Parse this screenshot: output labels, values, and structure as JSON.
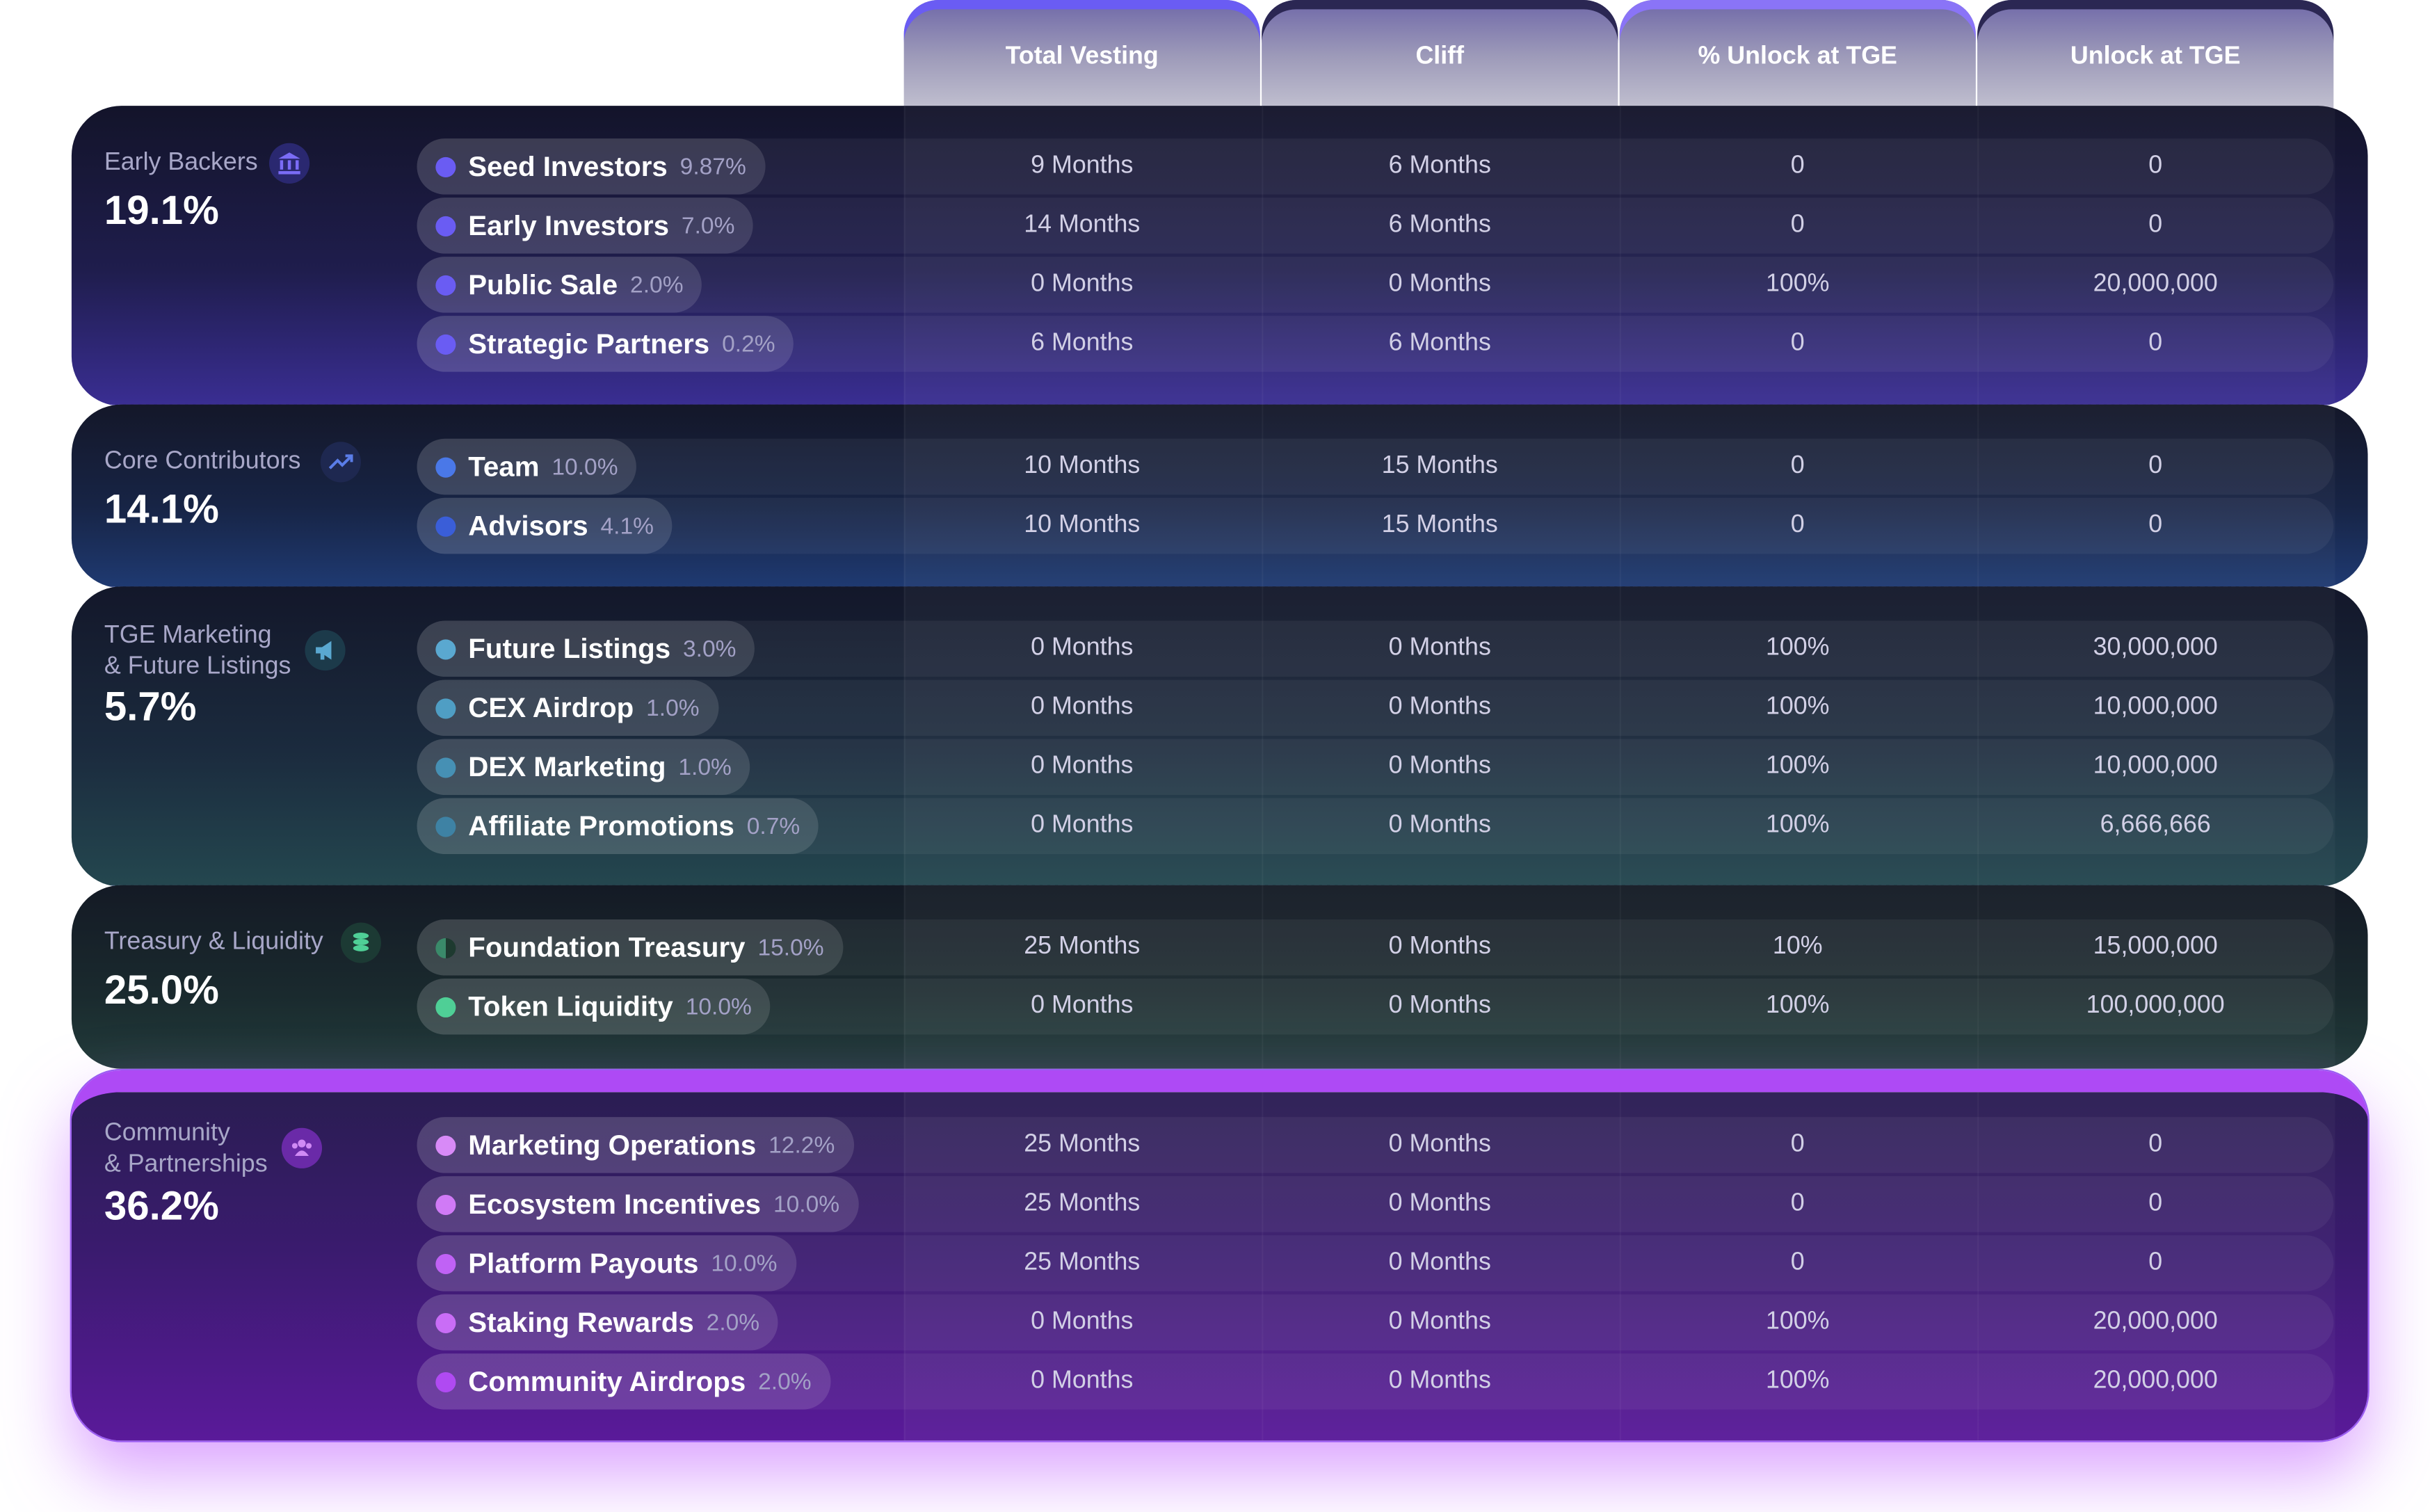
{
  "headers": [
    "Total Vesting",
    "Cliff",
    "% Unlock at TGE",
    "Unlock at TGE"
  ],
  "groups": [
    {
      "name_lines": [
        "Early Backers"
      ],
      "percent": "19.1%",
      "icon": "bank-icon",
      "color": "#6a5cf3",
      "items": [
        {
          "name": "Seed Investors",
          "pct": "9.87%",
          "vesting": "9 Months",
          "cliff": "6 Months",
          "unlock_pct": "0",
          "unlock": "0"
        },
        {
          "name": "Early Investors",
          "pct": "7.0%",
          "vesting": "14 Months",
          "cliff": "6 Months",
          "unlock_pct": "0",
          "unlock": "0"
        },
        {
          "name": "Public Sale",
          "pct": "2.0%",
          "vesting": "0 Months",
          "cliff": "0 Months",
          "unlock_pct": "100%",
          "unlock": "20,000,000"
        },
        {
          "name": "Strategic Partners",
          "pct": "0.2%",
          "vesting": "6 Months",
          "cliff": "6 Months",
          "unlock_pct": "0",
          "unlock": "0"
        }
      ]
    },
    {
      "name_lines": [
        "Core Contributors"
      ],
      "percent": "14.1%",
      "icon": "trending-up-icon",
      "color": "#4a78e8",
      "items": [
        {
          "name": "Team",
          "pct": "10.0%",
          "vesting": "10 Months",
          "cliff": "15 Months",
          "unlock_pct": "0",
          "unlock": "0"
        },
        {
          "name": "Advisors",
          "pct": "4.1%",
          "vesting": "10 Months",
          "cliff": "15 Months",
          "unlock_pct": "0",
          "unlock": "0"
        }
      ]
    },
    {
      "name_lines": [
        "TGE Marketing",
        "& Future Listings"
      ],
      "percent": "5.7%",
      "icon": "megaphone-icon",
      "color": "#5aa8d0",
      "items": [
        {
          "name": "Future Listings",
          "pct": "3.0%",
          "vesting": "0 Months",
          "cliff": "0 Months",
          "unlock_pct": "100%",
          "unlock": "30,000,000"
        },
        {
          "name": "CEX Airdrop",
          "pct": "1.0%",
          "vesting": "0 Months",
          "cliff": "0 Months",
          "unlock_pct": "100%",
          "unlock": "10,000,000"
        },
        {
          "name": "DEX Marketing",
          "pct": "1.0%",
          "vesting": "0 Months",
          "cliff": "0 Months",
          "unlock_pct": "100%",
          "unlock": "10,000,000"
        },
        {
          "name": "Affiliate Promotions",
          "pct": "0.7%",
          "vesting": "0 Months",
          "cliff": "0 Months",
          "unlock_pct": "100%",
          "unlock": "6,666,666"
        }
      ]
    },
    {
      "name_lines": [
        "Treasury & Liquidity"
      ],
      "percent": "25.0%",
      "icon": "coins-stack-icon",
      "color": "#4fcf96",
      "items": [
        {
          "name": "Foundation Treasury",
          "pct": "15.0%",
          "vesting": "25 Months",
          "cliff": "0 Months",
          "unlock_pct": "10%",
          "unlock": "15,000,000"
        },
        {
          "name": "Token Liquidity",
          "pct": "10.0%",
          "vesting": "0 Months",
          "cliff": "0 Months",
          "unlock_pct": "100%",
          "unlock": "100,000,000"
        }
      ]
    },
    {
      "name_lines": [
        "Community",
        "& Partnerships"
      ],
      "percent": "36.2%",
      "icon": "users-icon",
      "color": "#c062f5",
      "items": [
        {
          "name": "Marketing Operations",
          "pct": "12.2%",
          "vesting": "25 Months",
          "cliff": "0 Months",
          "unlock_pct": "0",
          "unlock": "0"
        },
        {
          "name": "Ecosystem Incentives",
          "pct": "10.0%",
          "vesting": "25 Months",
          "cliff": "0 Months",
          "unlock_pct": "0",
          "unlock": "0"
        },
        {
          "name": "Platform Payouts",
          "pct": "10.0%",
          "vesting": "25 Months",
          "cliff": "0 Months",
          "unlock_pct": "0",
          "unlock": "0"
        },
        {
          "name": "Staking Rewards",
          "pct": "2.0%",
          "vesting": "0 Months",
          "cliff": "0 Months",
          "unlock_pct": "100%",
          "unlock": "20,000,000"
        },
        {
          "name": "Community Airdrops",
          "pct": "2.0%",
          "vesting": "0 Months",
          "cliff": "0 Months",
          "unlock_pct": "100%",
          "unlock": "20,000,000"
        }
      ]
    }
  ]
}
